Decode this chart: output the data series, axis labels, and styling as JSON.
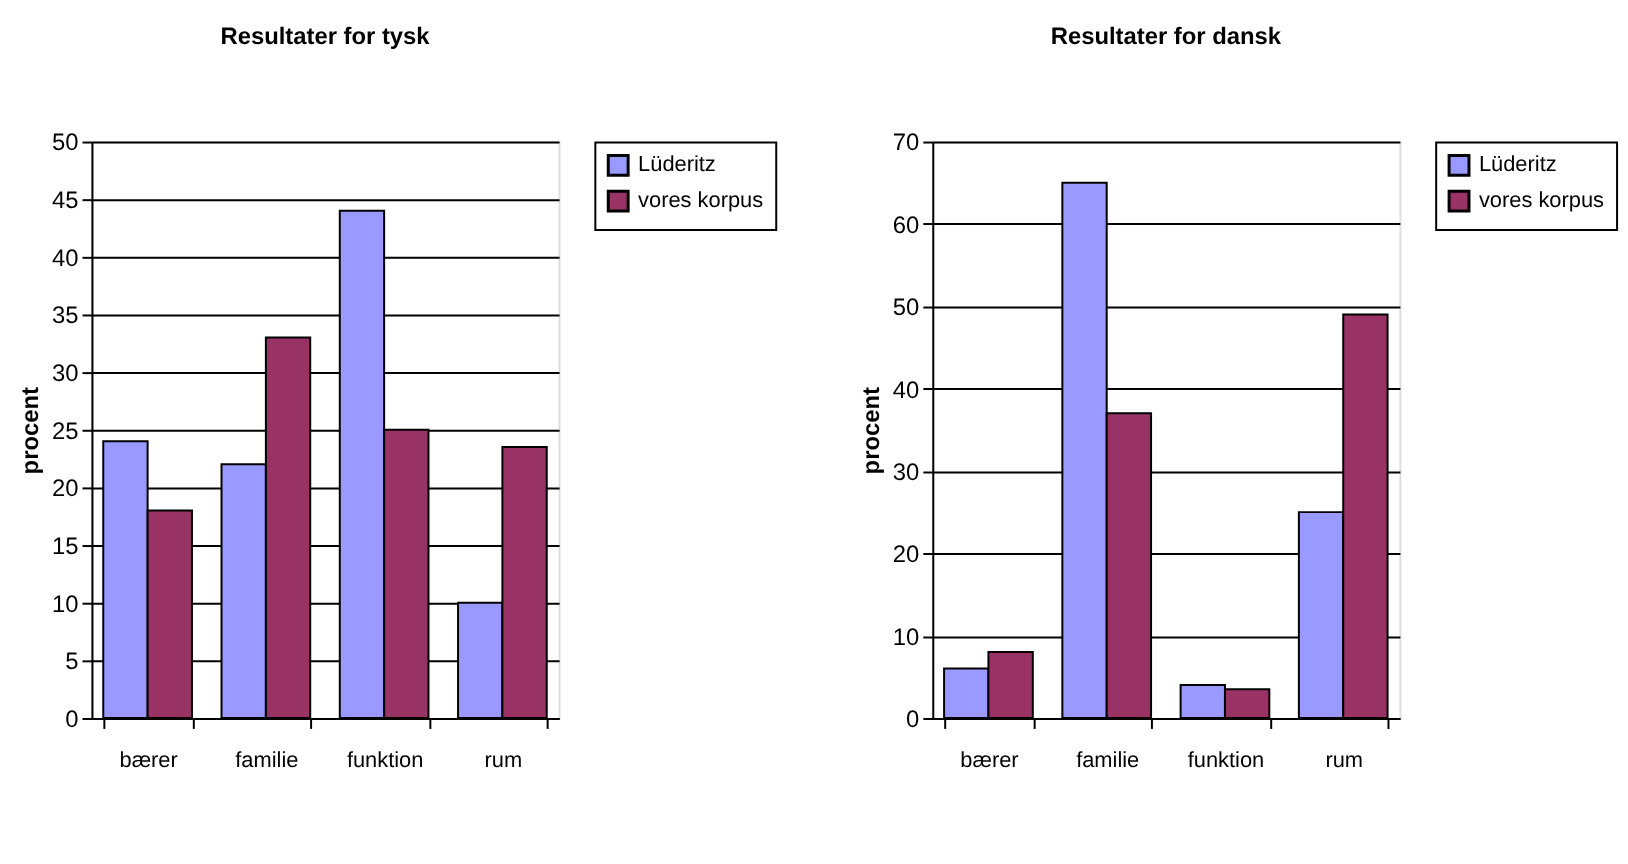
{
  "chart_data": [
    {
      "type": "bar",
      "title": "Resultater for tysk",
      "ylabel": "procent",
      "categories": [
        "bærer",
        "familie",
        "funktion",
        "rum"
      ],
      "series": [
        {
          "name": "Lüderitz",
          "color": "#9999ff",
          "values": [
            24,
            22,
            44,
            10
          ]
        },
        {
          "name": "vores korpus",
          "color": "#993366",
          "values": [
            18,
            33,
            25,
            23.5
          ]
        }
      ],
      "ylim": [
        0,
        50
      ],
      "yticks": [
        0,
        5,
        10,
        15,
        20,
        25,
        30,
        35,
        40,
        45,
        50
      ],
      "grid": "y",
      "legend": "right"
    },
    {
      "type": "bar",
      "title": "Resultater for dansk",
      "ylabel": "procent",
      "categories": [
        "bærer",
        "familie",
        "funktion",
        "rum"
      ],
      "series": [
        {
          "name": "Lüderitz",
          "color": "#9999ff",
          "values": [
            6,
            65,
            4,
            25
          ]
        },
        {
          "name": "vores korpus",
          "color": "#993366",
          "values": [
            8,
            37,
            3.5,
            49
          ]
        }
      ],
      "ylim": [
        0,
        70
      ],
      "yticks": [
        0,
        10,
        20,
        30,
        40,
        50,
        60,
        70
      ],
      "grid": "y",
      "legend": "right"
    }
  ]
}
